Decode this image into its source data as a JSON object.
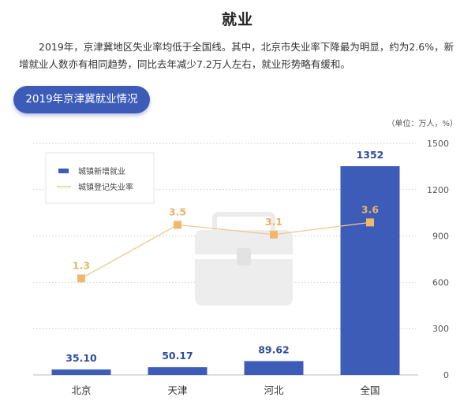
{
  "page": {
    "title": "就业",
    "paragraph": "2019年，京津冀地区失业率均低于全国线。其中，北京市失业率下降最为明显，约为2.6%，新增就业人数亦有相同趋势，同比去年减少7.2万人左右，就业形势略有缓和。",
    "section_label": "2019年京津冀就业情况",
    "unit": "（单位：万人，%）"
  },
  "colors": {
    "bar": "#3d5cb8",
    "line": "#f0c890",
    "marker": "#f2b76c",
    "rate_label": "#e8b368",
    "bar_label": "#2f4d9c",
    "grid": "#cccccc"
  },
  "icons": {
    "watermark": "briefcase-icon"
  },
  "chart_data": {
    "type": "bar",
    "categories": [
      "北京",
      "天津",
      "河北",
      "全国"
    ],
    "series": [
      {
        "name": "城镇新增就业",
        "type": "bar",
        "axis": "right",
        "values": [
          35.1,
          50.17,
          89.62,
          1352
        ]
      },
      {
        "name": "城镇登记失业率",
        "type": "line",
        "values": [
          1.3,
          3.5,
          3.1,
          3.6
        ]
      }
    ],
    "bar_value_labels": [
      "35.10",
      "50.17",
      "89.62",
      "1352"
    ],
    "line_value_labels": [
      "1.3",
      "3.5",
      "3.1",
      "3.6"
    ],
    "y_ticks": [
      0,
      300,
      600,
      900,
      1200,
      1500
    ],
    "ylim": [
      0,
      1500
    ],
    "y_axis_position": "right",
    "grid": true,
    "legend_position": "top-left"
  }
}
